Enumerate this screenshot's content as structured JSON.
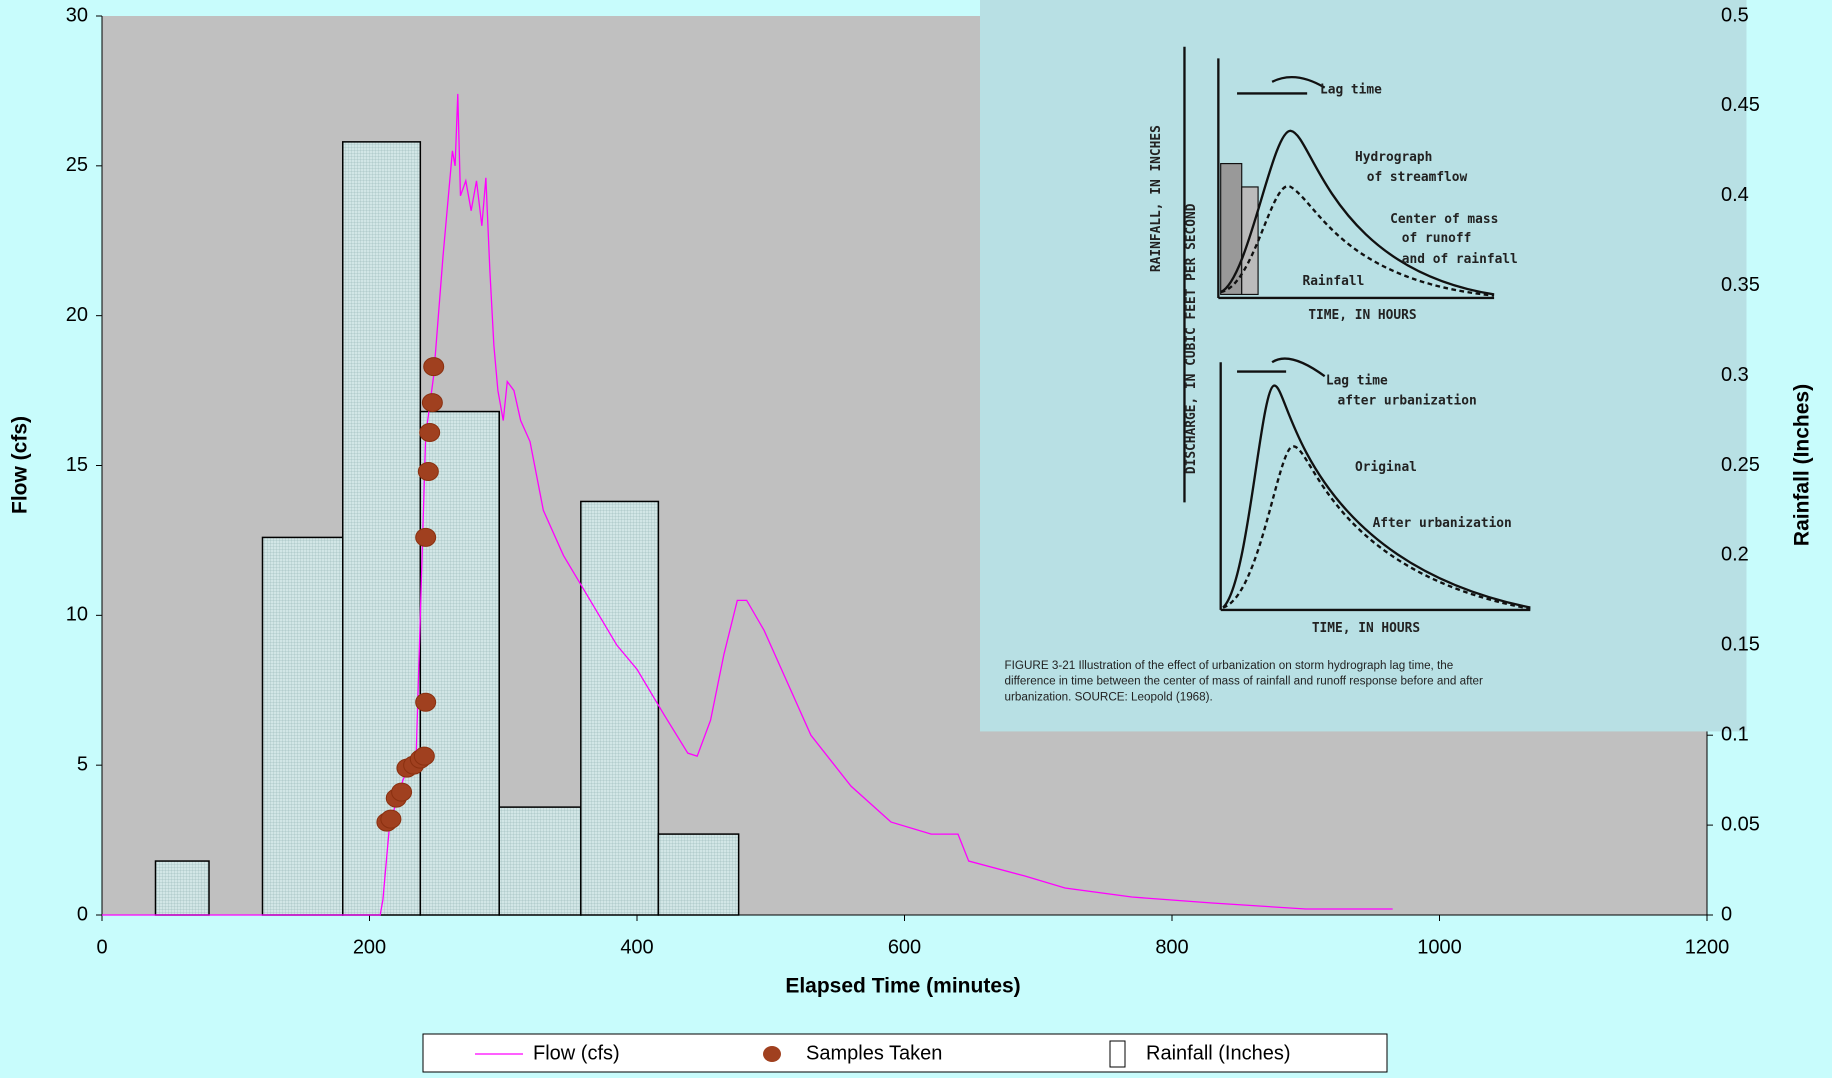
{
  "chart_data": {
    "type": "combo",
    "x_label": "Elapsed Time (minutes)",
    "y_label": "Flow (cfs)",
    "y2_label": "Rainfall (Inches)",
    "xlim": [
      0,
      1200
    ],
    "xticks": [
      0,
      200,
      400,
      600,
      800,
      1000,
      1200
    ],
    "ylim": [
      0,
      30
    ],
    "yticks": [
      0,
      5,
      10,
      15,
      20,
      25,
      30
    ],
    "y2lim": [
      0,
      0.5
    ],
    "y2ticks": [
      0,
      0.05,
      0.1,
      0.15,
      0.2,
      0.25,
      0.3,
      0.35,
      0.4,
      0.45,
      0.5
    ],
    "legend": "bottom",
    "series": [
      {
        "name": "Flow (cfs)",
        "type": "line",
        "color": "#ff00ff",
        "x": [
          0,
          208,
          210,
          215,
          225,
          235,
          238,
          242,
          248,
          255,
          262,
          264,
          266,
          268,
          272,
          276,
          280,
          284,
          287,
          290,
          293,
          296,
          300,
          303,
          308,
          313,
          320,
          330,
          345,
          365,
          385,
          400,
          420,
          438,
          445,
          455,
          465,
          475,
          482,
          495,
          510,
          530,
          560,
          590,
          620,
          640,
          648,
          690,
          720,
          770,
          830,
          900,
          965
        ],
        "values": [
          0,
          0,
          0.5,
          3,
          4.5,
          5.5,
          10,
          16,
          18,
          22,
          25.5,
          25,
          27.4,
          24,
          24.5,
          23.5,
          24.5,
          23,
          24.6,
          21.5,
          19,
          17.5,
          16.5,
          17.8,
          17.5,
          16.5,
          15.8,
          13.5,
          12,
          10.5,
          9,
          8.2,
          6.7,
          5.4,
          5.3,
          6.5,
          8.7,
          10.5,
          10.5,
          9.5,
          8,
          6,
          4.3,
          3.1,
          2.7,
          2.7,
          1.8,
          1.3,
          0.9,
          0.6,
          0.4,
          0.2,
          0.2
        ]
      },
      {
        "name": "Samples Taken",
        "type": "scatter",
        "color": "#a0401f",
        "x": [
          213,
          216,
          220,
          224,
          228,
          233,
          238,
          241,
          242,
          242,
          244,
          245,
          247,
          248
        ],
        "values": [
          3.1,
          3.2,
          3.9,
          4.1,
          4.9,
          5.0,
          5.2,
          5.3,
          7.1,
          12.6,
          14.8,
          16.1,
          17.1,
          18.3
        ]
      },
      {
        "name": "Rainfall (Inches)",
        "type": "bar",
        "axis": "y2",
        "color": "#d2e6e6",
        "x": [
          40,
          120,
          180,
          238,
          297,
          358,
          416
        ],
        "x_end": [
          80,
          180,
          238,
          297,
          358,
          416,
          476
        ],
        "values": [
          0.03,
          0.21,
          0.43,
          0.28,
          0.06,
          0.23,
          0.045
        ]
      }
    ]
  },
  "inset": {
    "labels": [
      "Lag time",
      "Hydrograph",
      "of streamflow",
      "Center of mass",
      "of runoff",
      "and of rainfall",
      "Rainfall",
      "TIME, IN HOURS",
      "Lag time",
      "after urbanization",
      "Original",
      "After urbanization",
      "TIME, IN HOURS"
    ],
    "y_label_top": "RAINFALL, IN INCHES",
    "y_label_bottom": "DISCHARGE, IN CUBIC FEET PER SECOND",
    "caption": [
      "FIGURE 3-21  Illustration of the effect of urbanization on storm hydrograph lag time, the",
      "difference in time between the center of mass of rainfall and runoff response before and after",
      "urbanization.  SOURCE: Leopold (1968)."
    ]
  }
}
